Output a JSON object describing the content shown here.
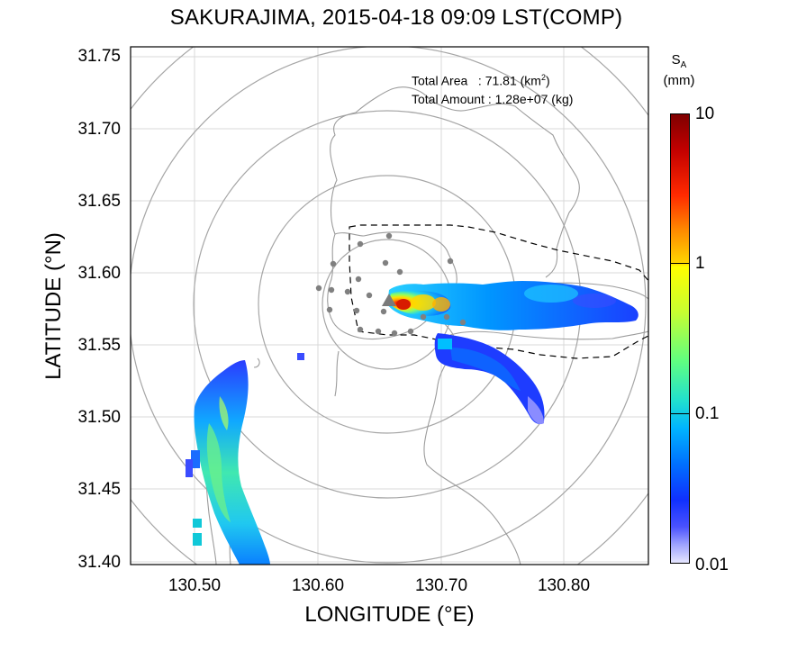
{
  "title": "SAKURAJIMA, 2015-04-18 09:09 LST(COMP)",
  "axes": {
    "xlabel": "LONGITUDE (°E)",
    "ylabel": "LATITUDE (°N)",
    "x_ticks": [
      "130.50",
      "130.60",
      "130.70",
      "130.80"
    ],
    "y_ticks": [
      "31.75",
      "31.70",
      "31.65",
      "31.60",
      "31.55",
      "31.50",
      "31.45",
      "31.40"
    ]
  },
  "annotation": {
    "area_label": "Total Area   : 71.81 (km",
    "area_sup": "2",
    "area_close": ")",
    "amount_label": "Total Amount : 1.28e+07 (kg)"
  },
  "colorbar": {
    "symbol": "S",
    "subscript": "A",
    "unit": "(mm)",
    "ticks": [
      "10",
      "1",
      "0.1",
      "0.01"
    ],
    "scale": "log"
  },
  "chart_data": {
    "type": "heatmap",
    "title": "SAKURAJIMA, 2015-04-18 09:09 LST(COMP)",
    "xlabel": "LONGITUDE (°E)",
    "ylabel": "LATITUDE (°N)",
    "xlim": [
      130.45,
      130.865
    ],
    "ylim": [
      31.397,
      31.757
    ],
    "colorbar_range": [
      0.01,
      10
    ],
    "colors": {
      "low": "#e6e6ff",
      "mid": "#00b4ff",
      "high": "#7f0000",
      "range_rings": "#a0a0a0",
      "coastline": "#9a9a9a",
      "stations": "#808080"
    }
  }
}
